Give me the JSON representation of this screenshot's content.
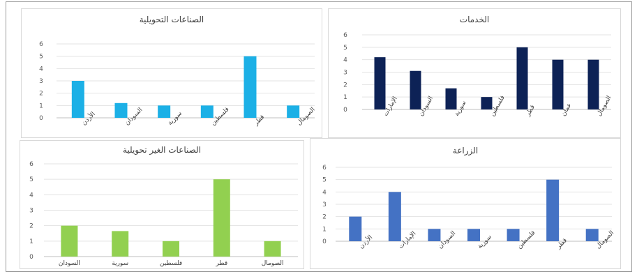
{
  "chart_data": [
    {
      "type": "bar",
      "title": "الصناعات التحويلية",
      "categories": [
        "الأردن",
        "السودان",
        "سورية",
        "فلسطين",
        "قطر",
        "الصومال"
      ],
      "values": [
        3,
        1.2,
        1,
        1,
        5,
        1
      ],
      "ylim": [
        0,
        6
      ],
      "yticks": [
        "0",
        "1",
        "2",
        "3",
        "4",
        "5",
        "6"
      ],
      "xlabel": "",
      "ylabel": "",
      "grid": true,
      "color": "#1cb0e6"
    },
    {
      "type": "bar",
      "title": "الخدمات",
      "categories": [
        "الإمارات",
        "السودان",
        "سورية",
        "فلسطين",
        "قطر",
        "عمان",
        "الصومال"
      ],
      "values": [
        4.2,
        3.1,
        1.7,
        1,
        5,
        4,
        4
      ],
      "ylim": [
        0,
        6
      ],
      "yticks": [
        "0",
        "1",
        "2",
        "3",
        "4",
        "5",
        "6"
      ],
      "xlabel": "",
      "ylabel": "",
      "grid": true,
      "color": "#0d2256"
    },
    {
      "type": "bar",
      "title": "الصناعات الغير تحويلية",
      "categories": [
        "السودان",
        "سورية",
        "فلسطين",
        "قطر",
        "الصومال"
      ],
      "values": [
        2,
        1.65,
        1,
        5,
        1
      ],
      "ylim": [
        0,
        6
      ],
      "yticks": [
        "0",
        "1",
        "2",
        "3",
        "4",
        "5",
        "6"
      ],
      "xlabel": "",
      "ylabel": "",
      "grid": true,
      "color": "#92d050"
    },
    {
      "type": "bar",
      "title": "الزراعة",
      "categories": [
        "الأردن",
        "الإمارات",
        "السودان",
        "سورية",
        "فلسطين",
        "قطر",
        "الصومال"
      ],
      "values": [
        2,
        4,
        1,
        1,
        1,
        5,
        1
      ],
      "ylim": [
        0,
        6
      ],
      "yticks": [
        "0",
        "1",
        "2",
        "3",
        "4",
        "5",
        "6"
      ],
      "xlabel": "",
      "ylabel": "",
      "grid": true,
      "color": "#4472c4"
    }
  ]
}
